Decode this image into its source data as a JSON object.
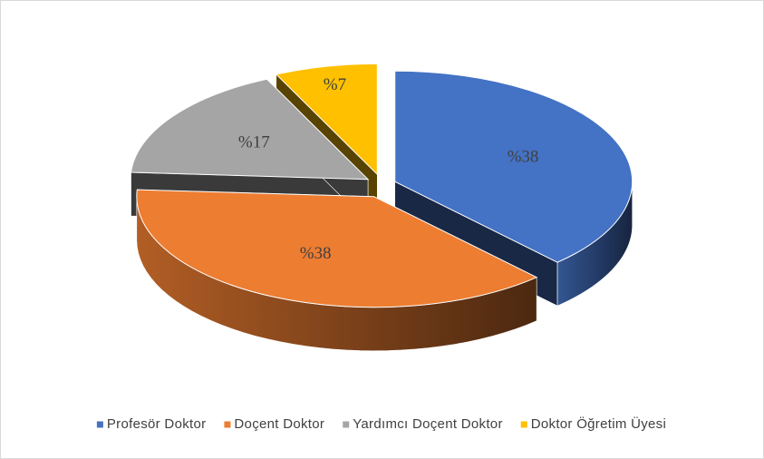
{
  "chart_data": {
    "type": "pie3d",
    "categories": [
      "Profesör Doktor",
      "Doçent Doktor",
      "Yardımcı Doçent Doktor",
      "Doktor Öğretim Üyesi"
    ],
    "values": [
      38,
      38,
      17,
      7
    ],
    "value_labels": [
      "%38",
      "%38",
      "%17",
      "%7"
    ],
    "colors": [
      "#4472c4",
      "#ed7d31",
      "#a5a5a5",
      "#ffc000"
    ],
    "legend": "bottom"
  }
}
